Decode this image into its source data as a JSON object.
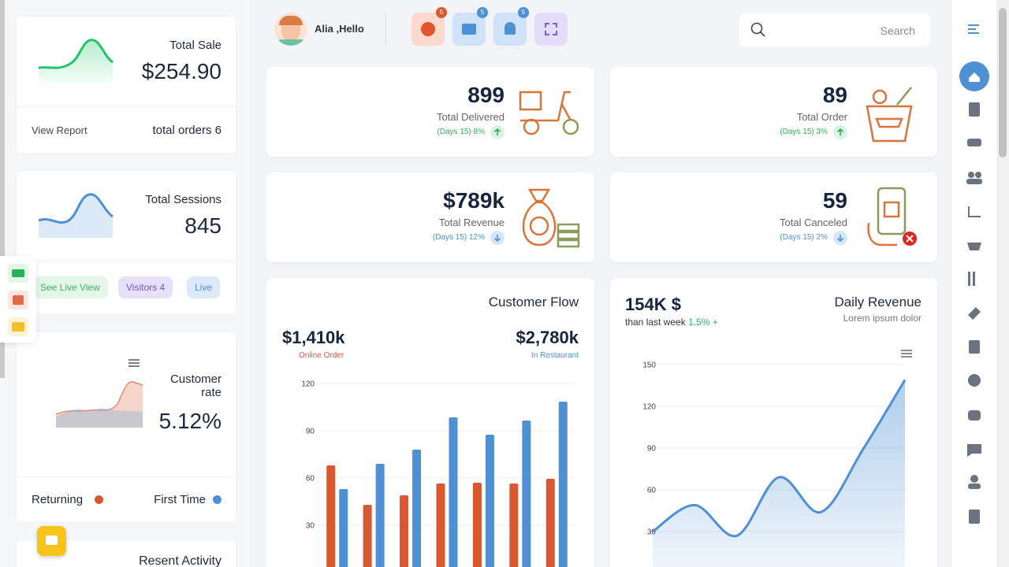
{
  "header": {
    "greeting": "Alia ,Hello",
    "badges": [
      "5",
      "5",
      "5"
    ],
    "search_placeholder": "Search"
  },
  "left_panel": {
    "sale": {
      "title": "Total Sale",
      "value": "$254.90",
      "link": "View Report",
      "orders": "total orders 6"
    },
    "sessions": {
      "title": "Total Sessions",
      "value": "845",
      "buttons": [
        "See Live View",
        "Visitors 4",
        "Live"
      ]
    },
    "customer_rate": {
      "title": "Customer rate",
      "value": "5.12%",
      "legend": [
        "Returning",
        "First Time"
      ]
    },
    "activity": {
      "title": "Resent Activity"
    }
  },
  "stats": [
    {
      "value": "899",
      "label": "Total Delivered",
      "change": "(Days 15) 8%"
    },
    {
      "value": "89",
      "label": "Total Order",
      "change": "(Days 15) 3%"
    },
    {
      "value": "$789k",
      "label": "Total Revenue",
      "change": "(Days 15) 12%"
    },
    {
      "value": "59",
      "label": "Total Canceled",
      "change": "(Days 15) 2%"
    }
  ],
  "customer_flow_summary": [
    {
      "value": "$1,410k",
      "label": "Online Order"
    },
    {
      "value": "$2,780k",
      "label": "In Restaurant"
    }
  ],
  "daily_revenue_summary": {
    "value": "154K $",
    "note": "than last week",
    "change": "1.5% +"
  },
  "chart_data": [
    {
      "type": "bar",
      "title": "Customer Flow",
      "series": [
        {
          "name": "Online Order",
          "color": "#d9582f",
          "values": [
            68,
            43,
            49,
            56.5,
            57,
            56.5,
            59.5
          ]
        },
        {
          "name": "In Restaurant",
          "color": "#4e90d3",
          "values": [
            53,
            69,
            78,
            98.5,
            87.5,
            96.5,
            108.5
          ]
        }
      ],
      "ylim": [
        0,
        120
      ],
      "yticks": [
        30,
        60,
        90,
        120
      ],
      "grid": true
    },
    {
      "type": "line",
      "title": "Daily Revenue",
      "subtitle": "Lorem ipsum dolor",
      "x": [
        0,
        1,
        2,
        3,
        4,
        5,
        6
      ],
      "series": [
        {
          "name": "Revenue",
          "color": "#4e90d3",
          "values": [
            30,
            49,
            27,
            69,
            44,
            89,
            139
          ]
        }
      ],
      "ylim": [
        0,
        150
      ],
      "yticks": [
        30,
        60,
        90,
        120,
        150
      ],
      "grid": true
    }
  ]
}
